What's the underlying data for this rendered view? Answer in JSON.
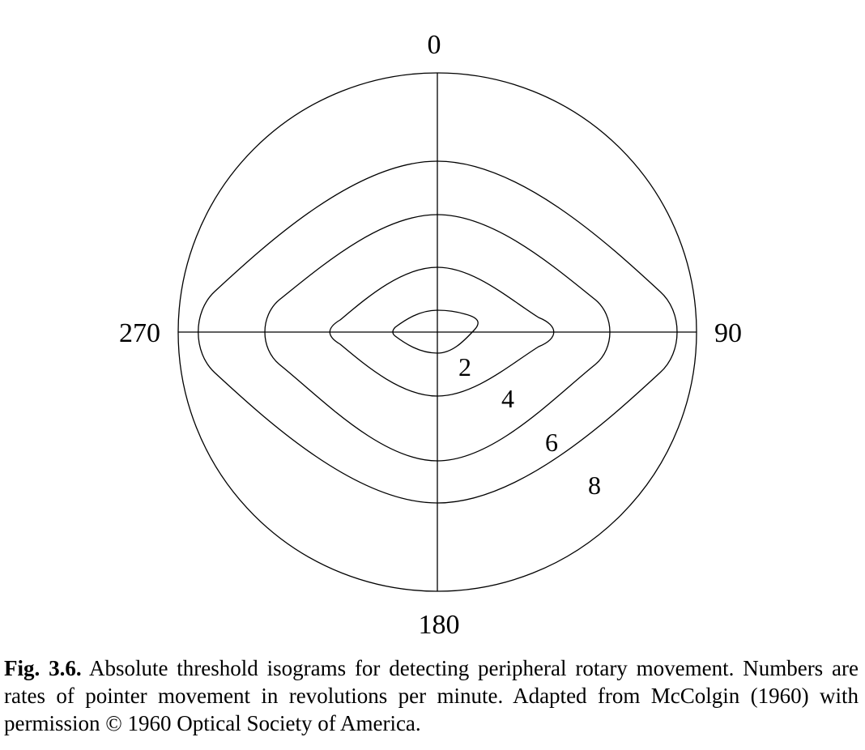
{
  "figure": {
    "axis_labels": {
      "top": "0",
      "right": "90",
      "bottom": "180",
      "left": "270"
    },
    "isograms": [
      {
        "label": "2"
      },
      {
        "label": "4"
      },
      {
        "label": "6"
      },
      {
        "label": "8"
      }
    ]
  },
  "caption": {
    "fig_number": "Fig. 3.6.",
    "text": " Absolute threshold isograms for detecting peripheral rotary movement. Numbers are rates of pointer movement in revolutions per minute. Adapted from McColgin (1960) with permission © 1960 Optical Society of America."
  }
}
